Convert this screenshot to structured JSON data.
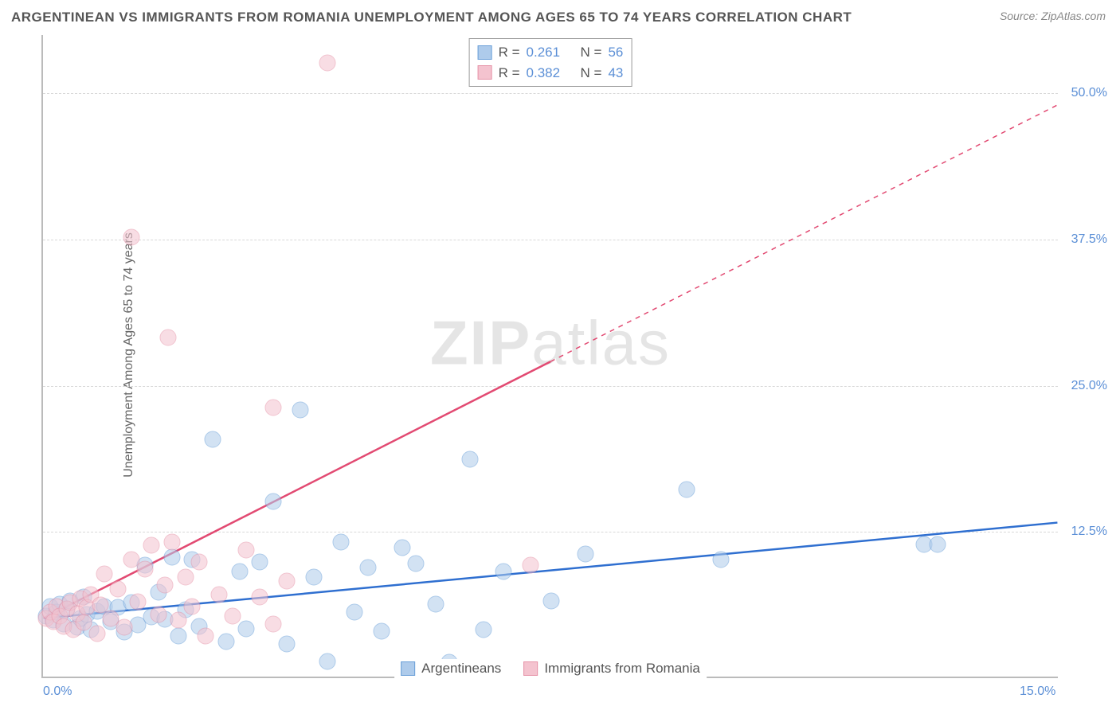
{
  "title": "ARGENTINEAN VS IMMIGRANTS FROM ROMANIA UNEMPLOYMENT AMONG AGES 65 TO 74 YEARS CORRELATION CHART",
  "source": "Source: ZipAtlas.com",
  "ylabel": "Unemployment Among Ages 65 to 74 years",
  "watermark_bold": "ZIP",
  "watermark_light": "atlas",
  "chart": {
    "type": "scatter",
    "xlim": [
      0,
      15
    ],
    "ylim": [
      0,
      55
    ],
    "xticks": [
      {
        "value": 0,
        "label": "0.0%"
      },
      {
        "value": 15,
        "label": "15.0%"
      }
    ],
    "yticks": [
      {
        "value": 12.5,
        "label": "12.5%"
      },
      {
        "value": 25.0,
        "label": "25.0%"
      },
      {
        "value": 37.5,
        "label": "37.5%"
      },
      {
        "value": 50.0,
        "label": "50.0%"
      }
    ],
    "grid_color": "#d8d8d8",
    "background_color": "#ffffff",
    "axis_color": "#bbbbbb",
    "tick_label_color": "#5b8fd6",
    "marker_radius": 10.5,
    "marker_opacity": 0.55,
    "series": [
      {
        "name": "Argentineans",
        "fill": "#aecbeb",
        "stroke": "#6a9fd8",
        "trend_color": "#2f6fd0",
        "trend_width": 2.5,
        "R": "0.261",
        "N": "56",
        "trend": {
          "x1": 0,
          "y1": 5.0,
          "x2": 15,
          "y2": 13.2,
          "dash_from_x": 15
        },
        "points": [
          [
            0.05,
            5.2
          ],
          [
            0.1,
            6.0
          ],
          [
            0.15,
            4.8
          ],
          [
            0.2,
            5.5
          ],
          [
            0.25,
            6.2
          ],
          [
            0.3,
            4.5
          ],
          [
            0.35,
            5.8
          ],
          [
            0.4,
            6.5
          ],
          [
            0.5,
            4.2
          ],
          [
            0.55,
            5.0
          ],
          [
            0.6,
            6.8
          ],
          [
            0.65,
            5.3
          ],
          [
            0.7,
            4.0
          ],
          [
            0.8,
            5.6
          ],
          [
            0.9,
            6.0
          ],
          [
            1.0,
            4.7
          ],
          [
            1.1,
            5.9
          ],
          [
            1.2,
            3.8
          ],
          [
            1.3,
            6.3
          ],
          [
            1.4,
            4.4
          ],
          [
            1.5,
            9.5
          ],
          [
            1.6,
            5.1
          ],
          [
            1.7,
            7.2
          ],
          [
            1.8,
            4.9
          ],
          [
            1.9,
            10.2
          ],
          [
            2.0,
            3.5
          ],
          [
            2.1,
            5.7
          ],
          [
            2.2,
            10.0
          ],
          [
            2.3,
            4.3
          ],
          [
            2.5,
            20.3
          ],
          [
            2.7,
            3.0
          ],
          [
            2.9,
            9.0
          ],
          [
            3.0,
            4.1
          ],
          [
            3.2,
            9.8
          ],
          [
            3.4,
            15.0
          ],
          [
            3.6,
            2.8
          ],
          [
            3.8,
            22.8
          ],
          [
            4.0,
            8.5
          ],
          [
            4.2,
            1.3
          ],
          [
            4.4,
            11.5
          ],
          [
            4.6,
            5.5
          ],
          [
            4.8,
            9.3
          ],
          [
            5.0,
            3.9
          ],
          [
            5.3,
            11.0
          ],
          [
            5.5,
            9.7
          ],
          [
            5.8,
            6.2
          ],
          [
            6.0,
            1.2
          ],
          [
            6.3,
            18.6
          ],
          [
            6.5,
            4.0
          ],
          [
            6.8,
            9.0
          ],
          [
            7.5,
            6.5
          ],
          [
            8.0,
            10.5
          ],
          [
            9.5,
            16.0
          ],
          [
            10.0,
            10.0
          ],
          [
            13.0,
            11.3
          ],
          [
            13.2,
            11.3
          ]
        ]
      },
      {
        "name": "Immigrants from Romania",
        "fill": "#f4c3cf",
        "stroke": "#e693a8",
        "trend_color": "#e24a72",
        "trend_width": 2.5,
        "R": "0.382",
        "N": "43",
        "trend": {
          "x1": 0,
          "y1": 5.0,
          "x2": 15,
          "y2": 49.0,
          "dash_from_x": 7.5
        },
        "points": [
          [
            0.05,
            5.0
          ],
          [
            0.1,
            5.5
          ],
          [
            0.15,
            4.7
          ],
          [
            0.2,
            6.0
          ],
          [
            0.25,
            5.2
          ],
          [
            0.3,
            4.3
          ],
          [
            0.35,
            5.8
          ],
          [
            0.4,
            6.3
          ],
          [
            0.45,
            4.0
          ],
          [
            0.5,
            5.4
          ],
          [
            0.55,
            6.7
          ],
          [
            0.6,
            4.6
          ],
          [
            0.65,
            5.9
          ],
          [
            0.7,
            7.0
          ],
          [
            0.8,
            3.7
          ],
          [
            0.85,
            6.1
          ],
          [
            0.9,
            8.8
          ],
          [
            1.0,
            5.0
          ],
          [
            1.1,
            7.5
          ],
          [
            1.2,
            4.2
          ],
          [
            1.3,
            10.0
          ],
          [
            1.3,
            37.6
          ],
          [
            1.4,
            6.4
          ],
          [
            1.5,
            9.2
          ],
          [
            1.6,
            11.2
          ],
          [
            1.7,
            5.3
          ],
          [
            1.8,
            7.8
          ],
          [
            1.85,
            29.0
          ],
          [
            1.9,
            11.5
          ],
          [
            2.0,
            4.8
          ],
          [
            2.1,
            8.5
          ],
          [
            2.2,
            6.0
          ],
          [
            2.3,
            9.8
          ],
          [
            2.4,
            3.5
          ],
          [
            2.6,
            7.0
          ],
          [
            2.8,
            5.2
          ],
          [
            3.0,
            10.8
          ],
          [
            3.2,
            6.8
          ],
          [
            3.4,
            4.5
          ],
          [
            3.4,
            23.0
          ],
          [
            3.6,
            8.2
          ],
          [
            4.2,
            52.5
          ],
          [
            7.2,
            9.5
          ]
        ]
      }
    ]
  },
  "legend_labels": {
    "R_prefix": "R  =",
    "N_prefix": "N  ="
  }
}
